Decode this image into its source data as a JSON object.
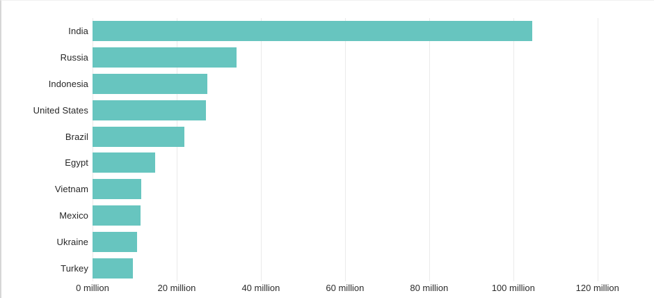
{
  "page": {
    "background": "#ffffff",
    "left_border_color": "#d6d6d6"
  },
  "chart_data": {
    "type": "bar",
    "orientation": "horizontal",
    "title": "",
    "xlabel": "",
    "ylabel": "",
    "unit": "million",
    "categories": [
      "India",
      "Russia",
      "Indonesia",
      "United States",
      "Brazil",
      "Egypt",
      "Vietnam",
      "Mexico",
      "Ukraine",
      "Turkey"
    ],
    "values": [
      104.5,
      34.3,
      27.2,
      26.9,
      21.9,
      14.8,
      11.6,
      11.4,
      10.6,
      9.6
    ],
    "x_ticks": [
      0,
      20,
      40,
      60,
      80,
      100,
      120
    ],
    "x_tick_labels": [
      "0 million",
      "20 million",
      "40 million",
      "60 million",
      "80 million",
      "100 million",
      "120 million"
    ],
    "xlim": [
      0,
      125.5
    ],
    "grid": true,
    "legend": false,
    "bar_color": "#67c5bf",
    "gridline_color": "#eaeaea",
    "label_color": "#262626"
  }
}
